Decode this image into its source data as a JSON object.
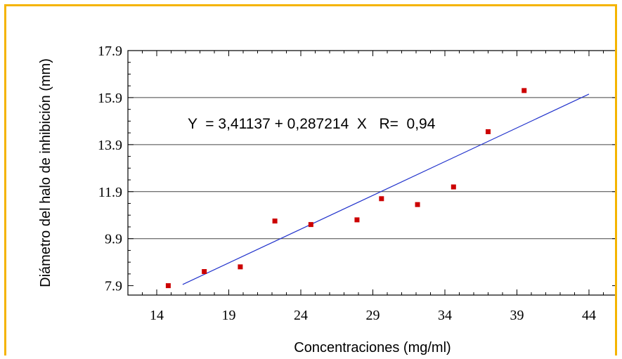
{
  "chart_data": {
    "type": "scatter",
    "xlabel": "Concentraciones (mg/ml)",
    "ylabel": "Diámetro del halo de inhibición (mm)",
    "xlim": [
      12,
      46
    ],
    "ylim": [
      7.5,
      17.9
    ],
    "x_ticks": [
      14,
      19,
      24,
      29,
      34,
      39,
      44
    ],
    "y_ticks": [
      7.9,
      9.9,
      11.9,
      13.9,
      15.9,
      17.9
    ],
    "x_tick_labels": [
      "14",
      "19",
      "24",
      "29",
      "34",
      "39",
      "44"
    ],
    "y_tick_labels": [
      "7.9",
      "9.9",
      "11.9",
      "13.9",
      "15.9",
      "17.9"
    ],
    "grid": "horizontal",
    "points": [
      {
        "x": 14.8,
        "y": 7.9
      },
      {
        "x": 17.3,
        "y": 8.5
      },
      {
        "x": 19.8,
        "y": 8.7
      },
      {
        "x": 22.2,
        "y": 10.65
      },
      {
        "x": 24.7,
        "y": 10.5
      },
      {
        "x": 27.9,
        "y": 10.7
      },
      {
        "x": 29.6,
        "y": 11.6
      },
      {
        "x": 32.1,
        "y": 11.35
      },
      {
        "x": 34.6,
        "y": 12.1
      },
      {
        "x": 37.0,
        "y": 14.45
      },
      {
        "x": 39.5,
        "y": 16.2
      }
    ],
    "fit_line": {
      "intercept": 3.41137,
      "slope": 0.287214,
      "x_range": [
        15.8,
        44.0
      ],
      "color": "#2233cc"
    },
    "point_color": "#cc0000",
    "equation_label": "Y  = 3,41137 + 0,287214  X   R=  0,94"
  }
}
